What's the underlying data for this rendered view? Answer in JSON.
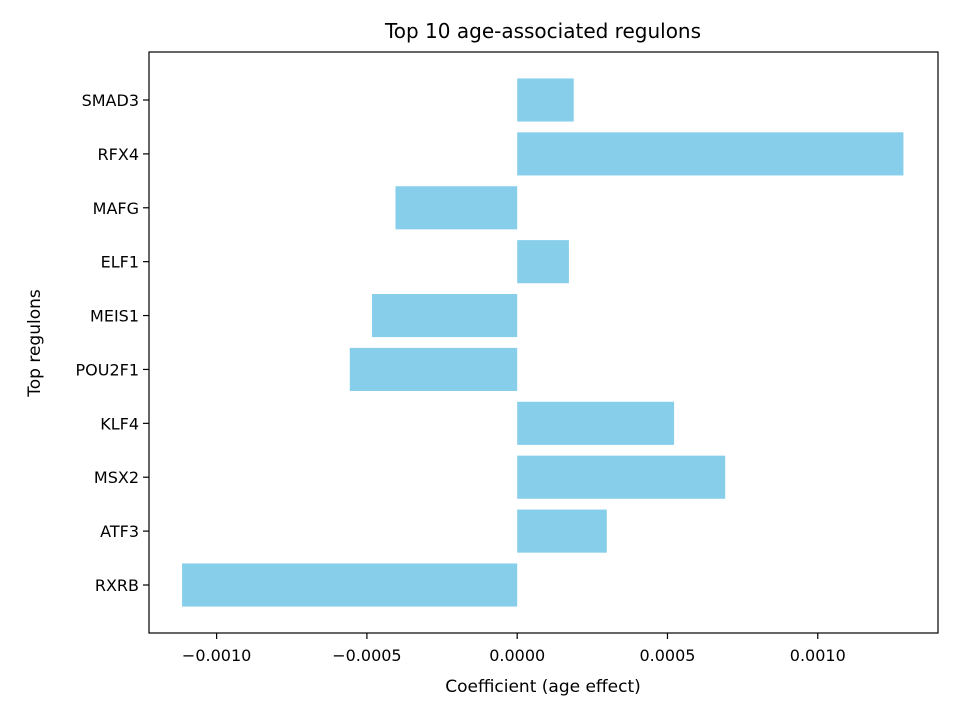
{
  "chart_data": {
    "type": "bar",
    "orientation": "horizontal",
    "title": "Top 10 age-associated regulons",
    "xlabel": "Coefficient (age effect)",
    "ylabel": "Top regulons",
    "categories": [
      "SMAD3",
      "RFX4",
      "MAFG",
      "ELF1",
      "MEIS1",
      "POU2F1",
      "KLF4",
      "MSX2",
      "ATF3",
      "RXRB"
    ],
    "values": [
      0.000188,
      0.001285,
      -0.000405,
      0.000172,
      -0.000483,
      -0.000557,
      0.000522,
      0.000692,
      0.000298,
      -0.001115
    ],
    "xlim": [
      -0.001225,
      0.0014
    ],
    "xticks": [
      -0.001,
      -0.0005,
      0.0,
      0.0005,
      0.001
    ],
    "xtick_labels": [
      "−0.0010",
      "−0.0005",
      "0.0000",
      "0.0005",
      "0.0010"
    ],
    "bar_color": "#87CEEB",
    "grid": false,
    "legend": "none"
  }
}
